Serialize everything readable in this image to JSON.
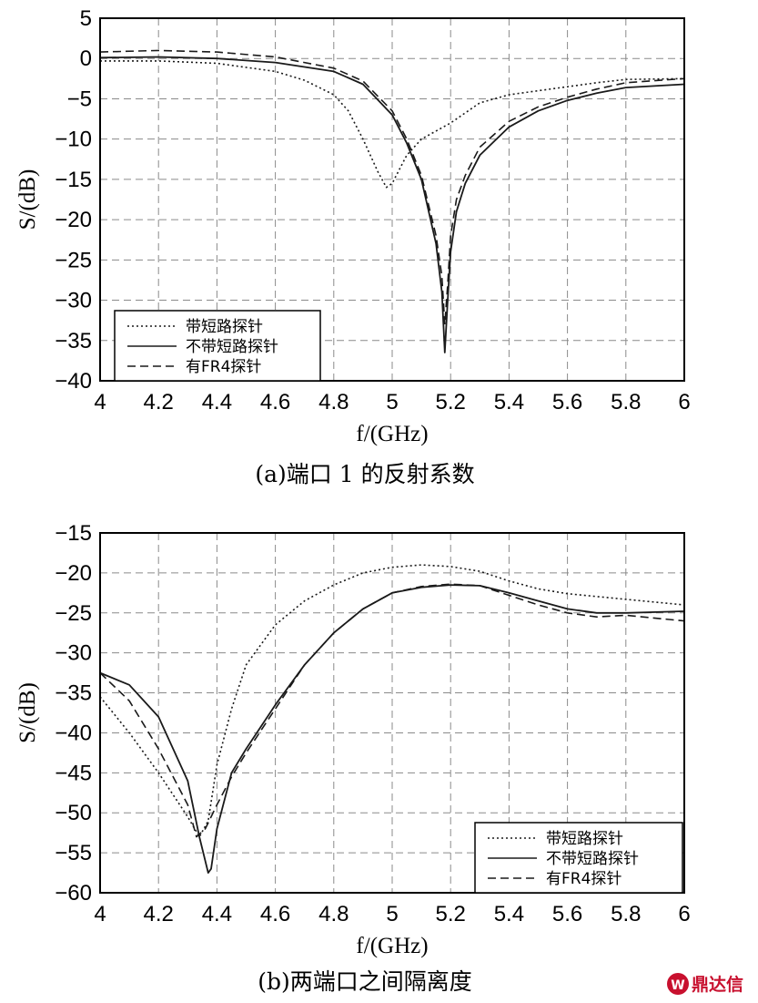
{
  "chart_data": [
    {
      "type": "line",
      "caption": "(a)端口 1 的反射系数",
      "xlabel": "f/(GHz)",
      "ylabel": "S/(dB)",
      "xlim": [
        4,
        6
      ],
      "ylim": [
        -40,
        5
      ],
      "xticks": [
        4,
        4.2,
        4.4,
        4.6,
        4.8,
        5,
        5.2,
        5.4,
        5.6,
        5.8,
        6
      ],
      "yticks": [
        5,
        0,
        -5,
        -10,
        -15,
        -20,
        -25,
        -30,
        -35,
        -40
      ],
      "grid": true,
      "legend_position": "bottom-left",
      "series": [
        {
          "name": "带短路探针",
          "style": "dotted",
          "x": [
            4.0,
            4.2,
            4.4,
            4.6,
            4.7,
            4.8,
            4.85,
            4.9,
            4.95,
            4.98,
            5.0,
            5.05,
            5.1,
            5.2,
            5.3,
            5.4,
            5.5,
            5.6,
            5.7,
            5.8,
            6.0
          ],
          "y": [
            -0.3,
            -0.3,
            -0.6,
            -1.6,
            -2.7,
            -4.5,
            -6.5,
            -10.0,
            -14.0,
            -16.0,
            -15.5,
            -12.0,
            -10.0,
            -8.0,
            -5.5,
            -4.5,
            -4.0,
            -3.5,
            -3.0,
            -2.6,
            -2.5
          ]
        },
        {
          "name": "不带短路探针",
          "style": "solid",
          "x": [
            4.0,
            4.2,
            4.4,
            4.6,
            4.8,
            4.9,
            5.0,
            5.05,
            5.1,
            5.15,
            5.17,
            5.18,
            5.19,
            5.2,
            5.22,
            5.25,
            5.3,
            5.4,
            5.5,
            5.6,
            5.7,
            5.8,
            6.0
          ],
          "y": [
            0.1,
            0.2,
            0.0,
            -0.5,
            -1.6,
            -3.2,
            -7.0,
            -10.5,
            -15.0,
            -23.0,
            -29.0,
            -36.5,
            -30.0,
            -24.0,
            -19.0,
            -15.5,
            -12.0,
            -8.5,
            -6.5,
            -5.2,
            -4.3,
            -3.6,
            -3.2
          ]
        },
        {
          "name": "有FR4探针",
          "style": "dashed",
          "x": [
            4.0,
            4.2,
            4.4,
            4.6,
            4.8,
            4.9,
            5.0,
            5.05,
            5.1,
            5.15,
            5.17,
            5.18,
            5.19,
            5.2,
            5.22,
            5.25,
            5.3,
            5.4,
            5.5,
            5.6,
            5.7,
            5.8,
            6.0
          ],
          "y": [
            0.8,
            1.0,
            0.8,
            0.2,
            -1.2,
            -2.8,
            -6.5,
            -10.0,
            -14.5,
            -22.0,
            -27.0,
            -33.0,
            -28.0,
            -22.0,
            -17.5,
            -14.5,
            -11.0,
            -7.8,
            -6.0,
            -4.8,
            -3.8,
            -3.0,
            -2.5
          ]
        }
      ]
    },
    {
      "type": "line",
      "caption": "(b)两端口之间隔离度",
      "xlabel": "f/(GHz)",
      "ylabel": "S/(dB)",
      "xlim": [
        4,
        6
      ],
      "ylim": [
        -60,
        -15
      ],
      "xticks": [
        4,
        4.2,
        4.4,
        4.6,
        4.8,
        5,
        5.2,
        5.4,
        5.6,
        5.8,
        6
      ],
      "yticks": [
        -15,
        -20,
        -25,
        -30,
        -35,
        -40,
        -45,
        -50,
        -55,
        -60
      ],
      "grid": true,
      "legend_position": "bottom-right",
      "series": [
        {
          "name": "带短路探针",
          "style": "dotted",
          "x": [
            4.0,
            4.1,
            4.2,
            4.3,
            4.34,
            4.37,
            4.4,
            4.45,
            4.5,
            4.6,
            4.7,
            4.8,
            4.9,
            5.0,
            5.1,
            5.2,
            5.3,
            5.4,
            5.5,
            5.6,
            5.8,
            6.0
          ],
          "y": [
            -35.5,
            -40.0,
            -45.0,
            -50.5,
            -53.0,
            -51.0,
            -44.0,
            -37.0,
            -31.5,
            -26.5,
            -23.5,
            -21.5,
            -20.0,
            -19.3,
            -19.0,
            -19.2,
            -19.8,
            -21.0,
            -22.0,
            -22.6,
            -23.3,
            -24.0
          ]
        },
        {
          "name": "不带短路探针",
          "style": "solid",
          "x": [
            4.0,
            4.1,
            4.2,
            4.3,
            4.34,
            4.37,
            4.38,
            4.4,
            4.45,
            4.5,
            4.6,
            4.7,
            4.8,
            4.9,
            5.0,
            5.1,
            5.2,
            5.3,
            5.4,
            5.5,
            5.6,
            5.7,
            5.8,
            6.0
          ],
          "y": [
            -32.5,
            -34.0,
            -38.0,
            -46.0,
            -53.0,
            -57.5,
            -57.0,
            -52.0,
            -45.0,
            -42.0,
            -36.5,
            -31.5,
            -27.5,
            -24.5,
            -22.5,
            -21.8,
            -21.5,
            -21.6,
            -22.5,
            -23.5,
            -24.5,
            -25.0,
            -25.0,
            -24.8
          ]
        },
        {
          "name": "有FR4探针",
          "style": "dashed",
          "x": [
            4.0,
            4.1,
            4.2,
            4.3,
            4.33,
            4.36,
            4.4,
            4.45,
            4.5,
            4.6,
            4.7,
            4.8,
            4.9,
            5.0,
            5.1,
            5.2,
            5.3,
            5.4,
            5.5,
            5.6,
            5.7,
            5.8,
            6.0
          ],
          "y": [
            -32.5,
            -36.0,
            -42.0,
            -49.0,
            -53.0,
            -52.0,
            -49.0,
            -45.5,
            -42.5,
            -37.0,
            -31.5,
            -27.5,
            -24.5,
            -22.5,
            -21.7,
            -21.4,
            -21.6,
            -22.8,
            -24.0,
            -25.0,
            -25.5,
            -25.3,
            -26.0
          ]
        }
      ]
    }
  ],
  "watermark": {
    "text": "鼎达信",
    "color": "#c8102e"
  }
}
